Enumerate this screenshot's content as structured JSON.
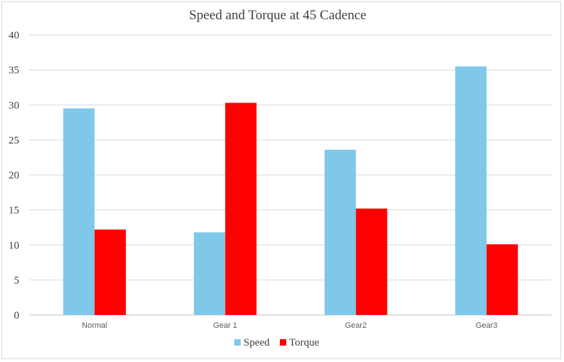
{
  "chart_data": {
    "type": "bar",
    "title": "Speed and Torque at 45 Cadence",
    "xlabel": "",
    "ylabel": "",
    "categories": [
      "Normal",
      "Gear 1",
      "Gear2",
      "Gear3"
    ],
    "series": [
      {
        "name": "Speed",
        "values": [
          29.5,
          11.8,
          23.6,
          35.5
        ],
        "color": "#7fc8ea"
      },
      {
        "name": "Torque",
        "values": [
          12.2,
          30.3,
          15.2,
          10.1
        ],
        "color": "#ff0000"
      }
    ],
    "ylim": [
      0,
      40
    ],
    "yticks": [
      "0",
      "5",
      "10",
      "15",
      "20",
      "25",
      "30",
      "35",
      "40"
    ],
    "grid": true,
    "legend_position": "bottom",
    "colors": {
      "grid": "#d9d9d9",
      "axis": "#bfbfbf"
    }
  }
}
